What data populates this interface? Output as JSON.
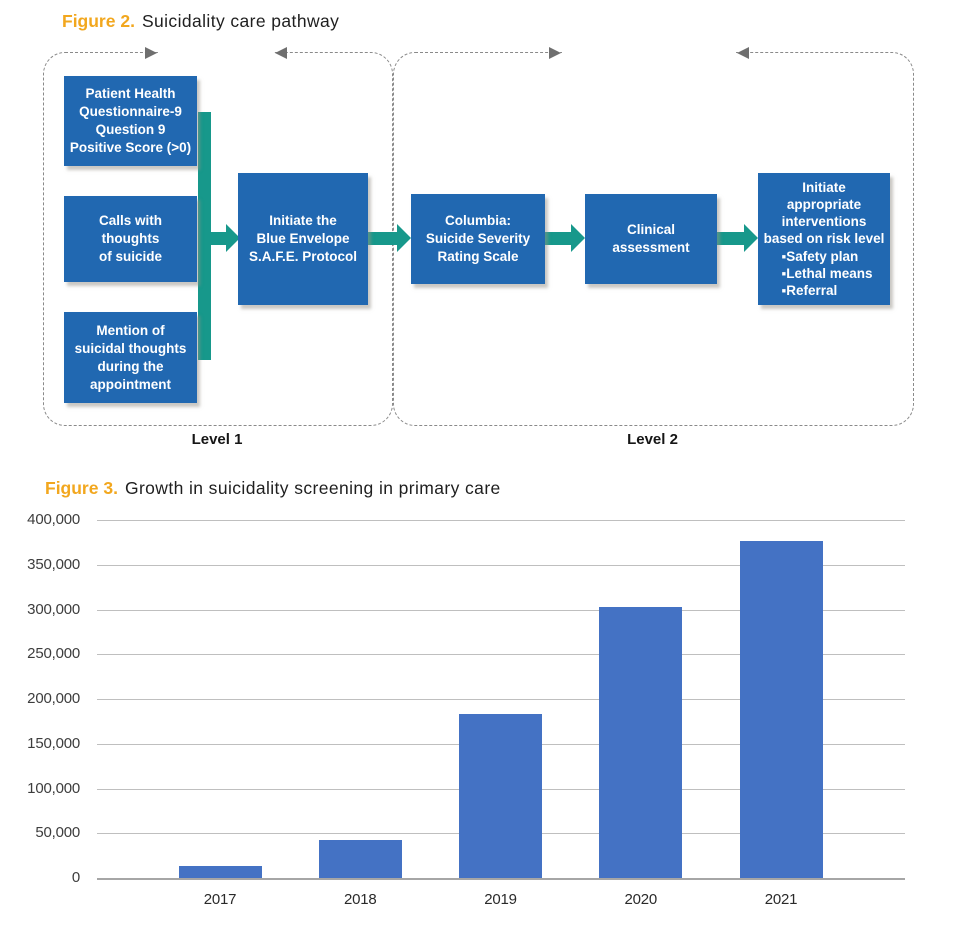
{
  "colors": {
    "figure_label_gold": "#F2A71E",
    "flow_box_blue": "#2168B1",
    "flow_arrow_teal": "#17988B",
    "bar_blue": "#4472C4",
    "dashed_border_gray": "#8A8A8A",
    "gridline_gray": "#BFBFBF",
    "axis_gray": "#A6A6A6"
  },
  "fig2": {
    "label": "Figure 2.",
    "title": "Suicidality care pathway",
    "levels": [
      {
        "label": "Level 1"
      },
      {
        "label": "Level 2"
      }
    ],
    "boxes": [
      {
        "text": "Patient Health\nQuestionnaire-9\nQuestion 9\nPositive Score (>0)"
      },
      {
        "text": "Calls with\nthoughts\nof suicide"
      },
      {
        "text": "Mention of\nsuicidal thoughts\nduring the\nappointment"
      },
      {
        "text": "Initiate the\nBlue Envelope\nS.A.F.E. Protocol"
      },
      {
        "text": "Columbia:\nSuicide Severity\nRating Scale"
      },
      {
        "text": "Clinical\nassessment"
      },
      {
        "text": "Initiate\nappropriate\ninterventions\nbased on risk level",
        "bullets": [
          "Safety plan",
          "Lethal means",
          "Referral"
        ]
      }
    ]
  },
  "fig3": {
    "label": "Figure 3.",
    "title": "Growth in suicidality screening in primary care"
  },
  "chart_data": {
    "type": "bar",
    "title": "Growth in suicidality screening in primary care",
    "categories": [
      "2017",
      "2018",
      "2019",
      "2020",
      "2021"
    ],
    "values": [
      13000,
      43000,
      183000,
      303000,
      376000
    ],
    "xlabel": "",
    "ylabel": "",
    "ylim": [
      0,
      400000
    ],
    "ytick_interval": 50000,
    "yticks": [
      {
        "value": 400000,
        "label": "400,000"
      },
      {
        "value": 350000,
        "label": "350,000"
      },
      {
        "value": 300000,
        "label": "300,000"
      },
      {
        "value": 250000,
        "label": "250,000"
      },
      {
        "value": 200000,
        "label": "200,000"
      },
      {
        "value": 150000,
        "label": "150,000"
      },
      {
        "value": 100000,
        "label": "100,000"
      },
      {
        "value": 50000,
        "label": "50,000"
      },
      {
        "value": 0,
        "label": "0"
      }
    ],
    "grid": true,
    "legend": false,
    "bar_color": "#4472C4"
  }
}
